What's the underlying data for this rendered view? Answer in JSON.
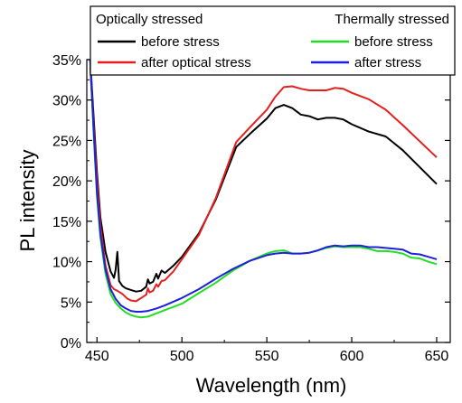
{
  "chart_data": {
    "type": "line",
    "xlabel": "Wavelength (nm)",
    "ylabel": "PL intensity",
    "xlim": [
      444,
      658
    ],
    "ylim": [
      0,
      35
    ],
    "xticks": [
      450,
      500,
      550,
      600,
      650
    ],
    "yticks": [
      0,
      5,
      10,
      15,
      20,
      25,
      30,
      35
    ],
    "ytick_labels": [
      "0%",
      "5%",
      "10%",
      "15%",
      "20%",
      "25%",
      "30%",
      "35%"
    ],
    "grid": false,
    "legend": {
      "placement": "top",
      "groups": [
        {
          "title": "Optically stressed",
          "entries": [
            "before stress",
            "after optical stress"
          ]
        },
        {
          "title": "Thermally stressed",
          "entries": [
            "before stress",
            "after stress"
          ]
        }
      ]
    },
    "series": [
      {
        "name": "before stress",
        "group": "Optically stressed",
        "color": "#000000",
        "points": [
          [
            446,
            35
          ],
          [
            448,
            28
          ],
          [
            450,
            21
          ],
          [
            452,
            15.5
          ],
          [
            455,
            11.2
          ],
          [
            458,
            8.8
          ],
          [
            460,
            8.0
          ],
          [
            461,
            9.0
          ],
          [
            462,
            11.2
          ],
          [
            463,
            7.6
          ],
          [
            465,
            7.0
          ],
          [
            467,
            6.7
          ],
          [
            470,
            6.5
          ],
          [
            473,
            6.3
          ],
          [
            476,
            6.4
          ],
          [
            479,
            6.9
          ],
          [
            480,
            7.8
          ],
          [
            481,
            7.3
          ],
          [
            483,
            7.5
          ],
          [
            485,
            8.5
          ],
          [
            486,
            7.9
          ],
          [
            488,
            8.9
          ],
          [
            490,
            8.6
          ],
          [
            495,
            9.5
          ],
          [
            500,
            10.6
          ],
          [
            510,
            13.5
          ],
          [
            520,
            17.7
          ],
          [
            532,
            24.2
          ],
          [
            540,
            25.8
          ],
          [
            550,
            27.7
          ],
          [
            555,
            29.0
          ],
          [
            560,
            29.4
          ],
          [
            565,
            29.0
          ],
          [
            570,
            28.2
          ],
          [
            575,
            28.0
          ],
          [
            580,
            27.6
          ],
          [
            585,
            27.8
          ],
          [
            590,
            27.8
          ],
          [
            595,
            27.6
          ],
          [
            600,
            27.0
          ],
          [
            610,
            26.1
          ],
          [
            620,
            25.5
          ],
          [
            630,
            23.8
          ],
          [
            640,
            21.7
          ],
          [
            650,
            19.6
          ]
        ]
      },
      {
        "name": "after optical stress",
        "group": "Optically stressed",
        "color": "#e51f1f",
        "points": [
          [
            446,
            34
          ],
          [
            448,
            27
          ],
          [
            450,
            20
          ],
          [
            452,
            14.5
          ],
          [
            455,
            9.5
          ],
          [
            458,
            7.1
          ],
          [
            460,
            6.6
          ],
          [
            462,
            6.4
          ],
          [
            465,
            6.0
          ],
          [
            468,
            5.4
          ],
          [
            470,
            5.2
          ],
          [
            473,
            5.1
          ],
          [
            476,
            5.5
          ],
          [
            479,
            5.9
          ],
          [
            480,
            6.7
          ],
          [
            481,
            6.2
          ],
          [
            483,
            6.4
          ],
          [
            485,
            7.2
          ],
          [
            486,
            6.9
          ],
          [
            488,
            7.6
          ],
          [
            490,
            7.7
          ],
          [
            495,
            8.8
          ],
          [
            500,
            10.3
          ],
          [
            510,
            13.3
          ],
          [
            520,
            17.9
          ],
          [
            532,
            24.8
          ],
          [
            540,
            26.6
          ],
          [
            550,
            28.8
          ],
          [
            555,
            30.4
          ],
          [
            560,
            31.6
          ],
          [
            565,
            31.7
          ],
          [
            570,
            31.4
          ],
          [
            575,
            31.2
          ],
          [
            580,
            31.2
          ],
          [
            585,
            31.2
          ],
          [
            590,
            31.5
          ],
          [
            595,
            31.4
          ],
          [
            600,
            30.9
          ],
          [
            610,
            30.1
          ],
          [
            620,
            28.8
          ],
          [
            630,
            26.9
          ],
          [
            640,
            24.9
          ],
          [
            650,
            22.9
          ]
        ]
      },
      {
        "name": "before stress",
        "group": "Thermally stressed",
        "color": "#22dd22",
        "points": [
          [
            446,
            35
          ],
          [
            448,
            26
          ],
          [
            450,
            18
          ],
          [
            452,
            13
          ],
          [
            455,
            8.5
          ],
          [
            458,
            6.0
          ],
          [
            461,
            4.9
          ],
          [
            464,
            4.2
          ],
          [
            467,
            3.7
          ],
          [
            470,
            3.4
          ],
          [
            473,
            3.2
          ],
          [
            476,
            3.1
          ],
          [
            480,
            3.2
          ],
          [
            485,
            3.6
          ],
          [
            490,
            4.0
          ],
          [
            500,
            4.8
          ],
          [
            510,
            6.1
          ],
          [
            520,
            7.4
          ],
          [
            530,
            8.9
          ],
          [
            540,
            10.1
          ],
          [
            550,
            11.0
          ],
          [
            555,
            11.3
          ],
          [
            560,
            11.4
          ],
          [
            565,
            11.0
          ],
          [
            570,
            11.0
          ],
          [
            575,
            11.1
          ],
          [
            580,
            11.4
          ],
          [
            585,
            11.7
          ],
          [
            590,
            11.9
          ],
          [
            595,
            11.8
          ],
          [
            600,
            11.8
          ],
          [
            605,
            11.8
          ],
          [
            610,
            11.6
          ],
          [
            615,
            11.3
          ],
          [
            620,
            11.3
          ],
          [
            625,
            11.2
          ],
          [
            630,
            11.0
          ],
          [
            635,
            10.5
          ],
          [
            640,
            10.4
          ],
          [
            645,
            10.0
          ],
          [
            650,
            9.7
          ]
        ]
      },
      {
        "name": "after stress",
        "group": "Thermally stressed",
        "color": "#1f1fdd",
        "points": [
          [
            446,
            35
          ],
          [
            448,
            26.5
          ],
          [
            450,
            18.5
          ],
          [
            452,
            13.5
          ],
          [
            455,
            9.0
          ],
          [
            458,
            6.6
          ],
          [
            461,
            5.4
          ],
          [
            464,
            4.6
          ],
          [
            467,
            4.2
          ],
          [
            470,
            3.9
          ],
          [
            473,
            3.8
          ],
          [
            476,
            3.8
          ],
          [
            480,
            3.9
          ],
          [
            485,
            4.2
          ],
          [
            490,
            4.6
          ],
          [
            500,
            5.5
          ],
          [
            510,
            6.6
          ],
          [
            520,
            7.9
          ],
          [
            530,
            9.1
          ],
          [
            540,
            10.1
          ],
          [
            550,
            10.8
          ],
          [
            555,
            11.0
          ],
          [
            560,
            11.1
          ],
          [
            565,
            11.0
          ],
          [
            570,
            11.0
          ],
          [
            575,
            11.1
          ],
          [
            580,
            11.4
          ],
          [
            585,
            11.8
          ],
          [
            590,
            12.0
          ],
          [
            595,
            11.9
          ],
          [
            600,
            12.0
          ],
          [
            605,
            12.0
          ],
          [
            610,
            11.8
          ],
          [
            615,
            11.8
          ],
          [
            620,
            11.7
          ],
          [
            625,
            11.6
          ],
          [
            630,
            11.5
          ],
          [
            635,
            11.0
          ],
          [
            640,
            10.9
          ],
          [
            645,
            10.6
          ],
          [
            650,
            10.3
          ]
        ]
      }
    ]
  },
  "colors": {
    "axis": "#000000",
    "frame": "#000000"
  }
}
